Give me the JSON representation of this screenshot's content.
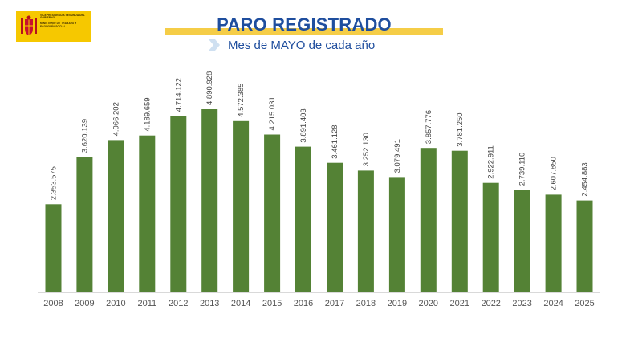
{
  "logo": {
    "line1": "VICEPRESIDENCIA SEGUNDA DEL GOBIERNO",
    "line2": "MINISTERIO DE TRABAJO Y ECONOMÍA SOCIAL"
  },
  "colors": {
    "bar": "#548235",
    "title": "#1f4e9e",
    "accent_band": "#f5cd47",
    "logo_bg": "#f6c800"
  },
  "chart_data": {
    "type": "bar",
    "title": "PARO REGISTRADO",
    "subtitle": "Mes de MAYO de cada año",
    "xlabel": "",
    "ylabel": "",
    "ylim": [
      0,
      5000000
    ],
    "grid": false,
    "legend": "none",
    "categories": [
      "2008",
      "2009",
      "2010",
      "2011",
      "2012",
      "2013",
      "2014",
      "2015",
      "2016",
      "2017",
      "2018",
      "2019",
      "2020",
      "2021",
      "2022",
      "2023",
      "2024",
      "2025"
    ],
    "values": [
      2353575,
      3620139,
      4066202,
      4189659,
      4714122,
      4890928,
      4572385,
      4215031,
      3891403,
      3461128,
      3252130,
      3079491,
      3857776,
      3781250,
      2922911,
      2739110,
      2607850,
      2454883
    ],
    "data_labels": [
      "2.353.575",
      "3.620.139",
      "4.066.202",
      "4.189.659",
      "4.714.122",
      "4.890.928",
      "4.572.385",
      "4.215.031",
      "3.891.403",
      "3.461.128",
      "3.252.130",
      "3.079.491",
      "3.857.776",
      "3.781.250",
      "2.922.911",
      "2.739.110",
      "2.607.850",
      "2.454.883"
    ]
  }
}
